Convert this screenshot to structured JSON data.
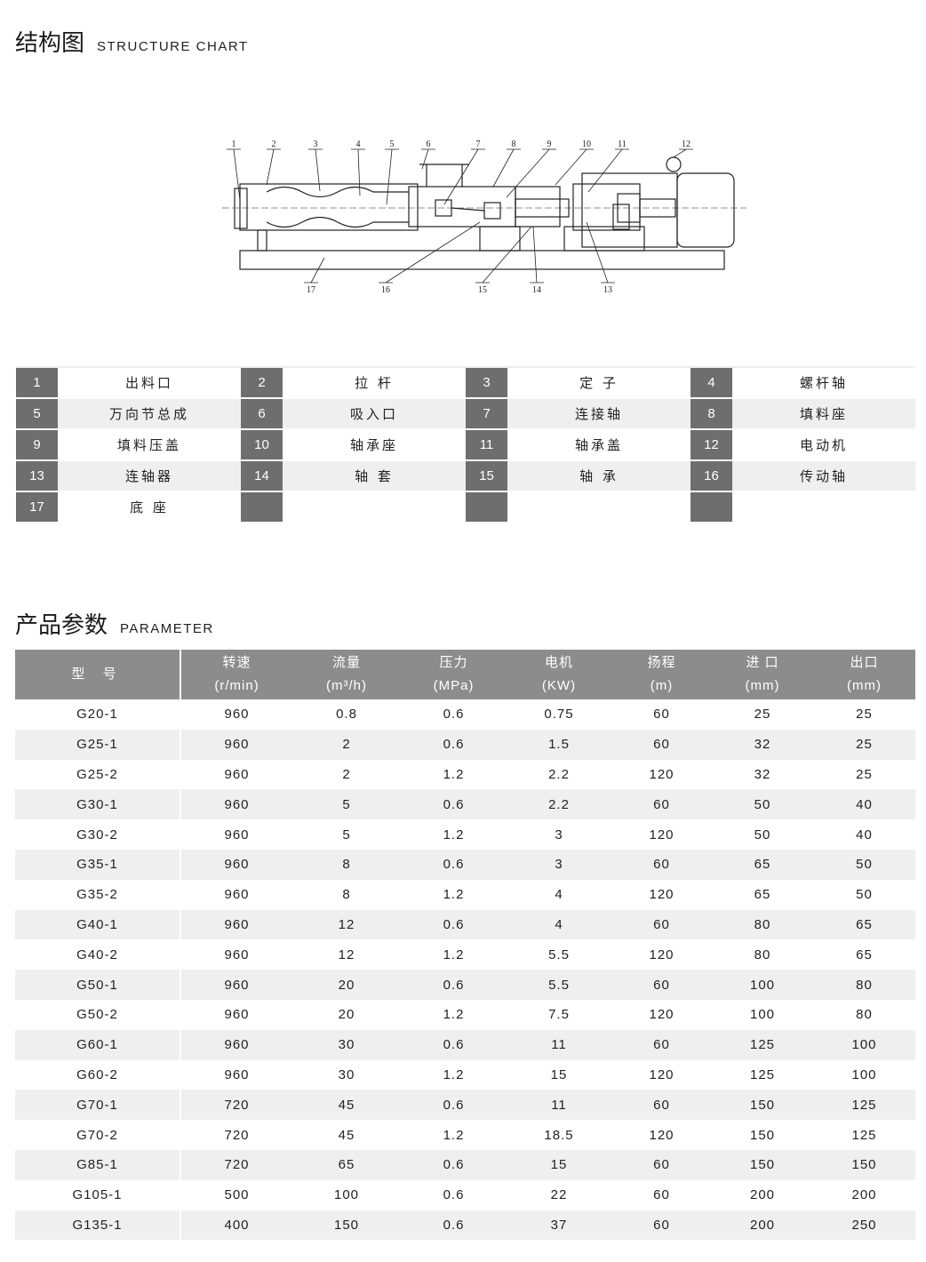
{
  "structure": {
    "title_cn": "结构图",
    "title_en": "STRUCTURE CHART",
    "diagram_labels": [
      "1",
      "2",
      "3",
      "4",
      "5",
      "6",
      "7",
      "8",
      "9",
      "10",
      "11",
      "12",
      "13",
      "14",
      "15",
      "16",
      "17"
    ]
  },
  "parts": [
    {
      "no": "1",
      "name": "出料口"
    },
    {
      "no": "2",
      "name": "拉 杆"
    },
    {
      "no": "3",
      "name": "定 子"
    },
    {
      "no": "4",
      "name": "螺杆轴"
    },
    {
      "no": "5",
      "name": "万向节总成"
    },
    {
      "no": "6",
      "name": "吸入口"
    },
    {
      "no": "7",
      "name": "连接轴"
    },
    {
      "no": "8",
      "name": "填料座"
    },
    {
      "no": "9",
      "name": "填料压盖"
    },
    {
      "no": "10",
      "name": "轴承座"
    },
    {
      "no": "11",
      "name": "轴承盖"
    },
    {
      "no": "12",
      "name": "电动机"
    },
    {
      "no": "13",
      "name": "连轴器"
    },
    {
      "no": "14",
      "name": "轴 套"
    },
    {
      "no": "15",
      "name": "轴 承"
    },
    {
      "no": "16",
      "name": "传动轴"
    },
    {
      "no": "17",
      "name": "底 座"
    },
    {
      "no": "",
      "name": ""
    },
    {
      "no": "",
      "name": ""
    },
    {
      "no": "",
      "name": ""
    }
  ],
  "parameter": {
    "title_cn": "产品参数",
    "title_en": "PARAMETER",
    "headers": [
      {
        "cn": "型 号",
        "unit": ""
      },
      {
        "cn": "转速",
        "unit": "(r/min)"
      },
      {
        "cn": "流量",
        "unit": "(m³/h)"
      },
      {
        "cn": "压力",
        "unit": "(MPa)"
      },
      {
        "cn": "电机",
        "unit": "(KW)"
      },
      {
        "cn": "扬程",
        "unit": "(m)"
      },
      {
        "cn": "进 口",
        "unit": "(mm)"
      },
      {
        "cn": "出口",
        "unit": "(mm)"
      }
    ],
    "rows": [
      [
        "G20-1",
        "960",
        "0.8",
        "0.6",
        "0.75",
        "60",
        "25",
        "25"
      ],
      [
        "G25-1",
        "960",
        "2",
        "0.6",
        "1.5",
        "60",
        "32",
        "25"
      ],
      [
        "G25-2",
        "960",
        "2",
        "1.2",
        "2.2",
        "120",
        "32",
        "25"
      ],
      [
        "G30-1",
        "960",
        "5",
        "0.6",
        "2.2",
        "60",
        "50",
        "40"
      ],
      [
        "G30-2",
        "960",
        "5",
        "1.2",
        "3",
        "120",
        "50",
        "40"
      ],
      [
        "G35-1",
        "960",
        "8",
        "0.6",
        "3",
        "60",
        "65",
        "50"
      ],
      [
        "G35-2",
        "960",
        "8",
        "1.2",
        "4",
        "120",
        "65",
        "50"
      ],
      [
        "G40-1",
        "960",
        "12",
        "0.6",
        "4",
        "60",
        "80",
        "65"
      ],
      [
        "G40-2",
        "960",
        "12",
        "1.2",
        "5.5",
        "120",
        "80",
        "65"
      ],
      [
        "G50-1",
        "960",
        "20",
        "0.6",
        "5.5",
        "60",
        "100",
        "80"
      ],
      [
        "G50-2",
        "960",
        "20",
        "1.2",
        "7.5",
        "120",
        "100",
        "80"
      ],
      [
        "G60-1",
        "960",
        "30",
        "0.6",
        "11",
        "60",
        "125",
        "100"
      ],
      [
        "G60-2",
        "960",
        "30",
        "1.2",
        "15",
        "120",
        "125",
        "100"
      ],
      [
        "G70-1",
        "720",
        "45",
        "0.6",
        "11",
        "60",
        "150",
        "125"
      ],
      [
        "G70-2",
        "720",
        "45",
        "1.2",
        "18.5",
        "120",
        "150",
        "125"
      ],
      [
        "G85-1",
        "720",
        "65",
        "0.6",
        "15",
        "60",
        "150",
        "150"
      ],
      [
        "G105-1",
        "500",
        "100",
        "0.6",
        "22",
        "60",
        "200",
        "200"
      ],
      [
        "G135-1",
        "400",
        "150",
        "0.6",
        "37",
        "60",
        "200",
        "250"
      ]
    ]
  },
  "colors": {
    "number_box": "#6e6e6e",
    "header_bg": "#8c8c8c",
    "alt_row": "#efefef"
  }
}
